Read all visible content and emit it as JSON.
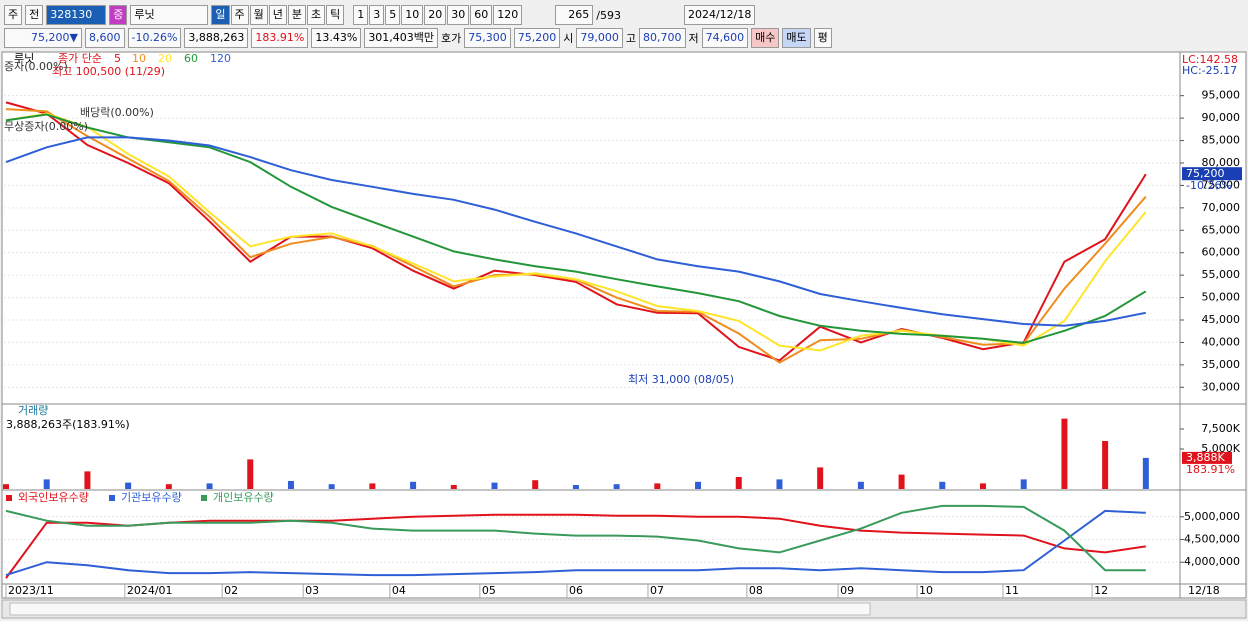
{
  "toolbar": {
    "period": "주",
    "prev": "전",
    "code": "328130",
    "badge": "증",
    "name": "루닛",
    "units": [
      "일",
      "주",
      "월",
      "년",
      "분",
      "초",
      "틱"
    ],
    "counts": [
      "1",
      "3",
      "5",
      "10",
      "20",
      "30",
      "60",
      "120"
    ],
    "view": "265",
    "total": "/593",
    "date": "2024/12/18"
  },
  "info": {
    "price": "75,200▼",
    "change": "8,600",
    "rate": "-10.26%",
    "volume": "3,888,263",
    "volume_rate": "183.91%",
    "turnover": "13.43%",
    "amount": "301,403백만",
    "quote_label": "호가",
    "ask": "75,300",
    "bid": "75,200",
    "open_label": "시",
    "open": "79,000",
    "high_label": "고",
    "high": "80,700",
    "low_label": "저",
    "low": "74,600",
    "buy": "매수",
    "sell": "매도",
    "avg": "평"
  },
  "chart_data": [
    {
      "type": "line",
      "title": "루닛",
      "legend_title": "종가 단순",
      "x": [
        0,
        1,
        2,
        3,
        4,
        5,
        6,
        7,
        8,
        9,
        10,
        11,
        12,
        13,
        14,
        15,
        16,
        17,
        18,
        19,
        20,
        21,
        22,
        23,
        24,
        25,
        26,
        27,
        28
      ],
      "xlim": [
        0,
        28.79
      ],
      "ylim": [
        26500,
        103400
      ],
      "yticks": [
        {
          "value": 30000,
          "label": "30,000"
        },
        {
          "value": 35000,
          "label": "35,000"
        },
        {
          "value": 40000,
          "label": "40,000"
        },
        {
          "value": 45000,
          "label": "45,000"
        },
        {
          "value": 50000,
          "label": "50,000"
        },
        {
          "value": 55000,
          "label": "55,000"
        },
        {
          "value": 60000,
          "label": "60,000"
        },
        {
          "value": 65000,
          "label": "65,000"
        },
        {
          "value": 70000,
          "label": "70,000"
        },
        {
          "value": 75000,
          "label": "75,000"
        },
        {
          "value": 80000,
          "label": "80,000"
        },
        {
          "value": 85000,
          "label": "85,000"
        },
        {
          "value": 90000,
          "label": "90,000"
        },
        {
          "value": 95000,
          "label": "95,000"
        }
      ],
      "grid": true,
      "series": [
        {
          "name": "5",
          "color": "#e0121b",
          "values": [
            93500,
            91000,
            84000,
            80000,
            75500,
            67000,
            58000,
            63600,
            63600,
            61000,
            56000,
            52000,
            56000,
            55000,
            53500,
            48500,
            46600,
            46500,
            39000,
            36000,
            43500,
            40000,
            43000,
            41000,
            38500,
            40000,
            58000,
            63000,
            77500
          ]
        },
        {
          "name": "10",
          "color": "#f08c1e",
          "values": [
            92000,
            91500,
            86000,
            81000,
            76000,
            68000,
            59000,
            62000,
            63500,
            61500,
            57000,
            52500,
            55000,
            55200,
            54000,
            50000,
            47000,
            46800,
            42000,
            35500,
            40500,
            40800,
            42800,
            41200,
            39500,
            39800,
            52000,
            62000,
            72500
          ]
        },
        {
          "name": "20",
          "color": "#ffe52a",
          "values": [
            89500,
            91000,
            88000,
            82000,
            77000,
            69000,
            61400,
            63600,
            64300,
            61400,
            57600,
            53600,
            54700,
            55400,
            54100,
            51400,
            48100,
            47000,
            44800,
            39300,
            38200,
            41500,
            42600,
            41500,
            40800,
            39300,
            44800,
            58100,
            69100
          ]
        },
        {
          "name": "60",
          "color": "#23963a",
          "values": [
            89500,
            90800,
            87900,
            85700,
            84600,
            83500,
            80200,
            74700,
            70200,
            66900,
            63600,
            60300,
            58500,
            57000,
            55800,
            54100,
            52500,
            51000,
            49200,
            45900,
            43700,
            42600,
            41900,
            41500,
            40800,
            39900,
            42600,
            45900,
            51400
          ]
        },
        {
          "name": "120",
          "color": "#2f5fd6",
          "values": [
            80200,
            83500,
            85700,
            85700,
            85000,
            83900,
            81300,
            78400,
            76200,
            74700,
            73100,
            71800,
            69600,
            66900,
            64300,
            61400,
            58500,
            57000,
            55800,
            53600,
            50800,
            49200,
            47700,
            46300,
            45200,
            44100,
            43700,
            44800,
            46600
          ]
        }
      ],
      "annotations": [
        "최고 100,500 (11/29)",
        "최저 31,000 (08/05)",
        "배당락(0.00%)",
        "무상증자(0.00%)",
        "증자(0.00%)"
      ],
      "lc": "LC:142.58",
      "hc": "HC:-25.17",
      "last_label": "75,200",
      "last_rate": "-10.26%"
    },
    {
      "type": "bar",
      "title": "거래량",
      "subtitle": "3,888,263주(183.91%)",
      "x": [
        0,
        1,
        2,
        3,
        4,
        5,
        6,
        7,
        8,
        9,
        10,
        11,
        12,
        13,
        14,
        15,
        16,
        17,
        18,
        19,
        20,
        21,
        22,
        23,
        24,
        25,
        26,
        27,
        28
      ],
      "xlim": [
        0,
        28.79
      ],
      "ylim": [
        0,
        10250
      ],
      "yticks": [
        {
          "value": 5000,
          "label": "5,000K"
        },
        {
          "value": 7500,
          "label": "7,500K"
        }
      ],
      "values": [
        600,
        1200,
        2200,
        800,
        600,
        700,
        3700,
        1000,
        600,
        700,
        900,
        500,
        800,
        1100,
        500,
        600,
        700,
        900,
        1500,
        1200,
        2700,
        900,
        1800,
        900,
        700,
        1200,
        8800,
        6000,
        3888
      ],
      "colors": [
        "#e0121b",
        "#2f5fd6",
        "#e0121b",
        "#2f5fd6",
        "#e0121b",
        "#2f5fd6",
        "#e0121b",
        "#2f5fd6",
        "#2f5fd6",
        "#e0121b",
        "#2f5fd6",
        "#e0121b",
        "#2f5fd6",
        "#e0121b",
        "#2f5fd6",
        "#2f5fd6",
        "#e0121b",
        "#2f5fd6",
        "#e0121b",
        "#2f5fd6",
        "#e0121b",
        "#2f5fd6",
        "#e0121b",
        "#2f5fd6",
        "#e0121b",
        "#2f5fd6",
        "#e0121b",
        "#e0121b",
        "#2f5fd6"
      ],
      "last_label": "3,888K",
      "last_rate": "183.91%"
    },
    {
      "type": "line",
      "x": [
        0,
        1,
        2,
        3,
        4,
        5,
        6,
        7,
        8,
        9,
        10,
        11,
        12,
        13,
        14,
        15,
        16,
        17,
        18,
        19,
        20,
        21,
        22,
        23,
        24,
        25,
        26,
        27,
        28
      ],
      "xlim": [
        0,
        28.79
      ],
      "ylim": [
        3543500,
        5434800
      ],
      "yticks": [
        {
          "value": 4000000,
          "label": "4,000,000"
        },
        {
          "value": 4500000,
          "label": "4,500,000"
        },
        {
          "value": 5000000,
          "label": "5,000,000"
        }
      ],
      "grid": true,
      "xticks": [
        {
          "value": 0,
          "label": "2023/11"
        },
        {
          "value": 2.92,
          "label": "2024/01"
        },
        {
          "value": 5.31,
          "label": "02"
        },
        {
          "value": 7.3,
          "label": "03"
        },
        {
          "value": 9.43,
          "label": "04"
        },
        {
          "value": 11.64,
          "label": "05"
        },
        {
          "value": 13.78,
          "label": "06"
        },
        {
          "value": 15.77,
          "label": "07"
        },
        {
          "value": 18.2,
          "label": "08"
        },
        {
          "value": 20.44,
          "label": "09"
        },
        {
          "value": 22.38,
          "label": "10"
        },
        {
          "value": 24.49,
          "label": "11"
        },
        {
          "value": 26.68,
          "label": "12"
        }
      ],
      "x_end_label": "12/18",
      "series": [
        {
          "name": "외국인보유수량",
          "color": "#e0121b",
          "values": [
            3652000,
            4870000,
            4870000,
            4804000,
            4870000,
            4913000,
            4913000,
            4913000,
            4913000,
            4957000,
            5000000,
            5022000,
            5043000,
            5043000,
            5043000,
            5022000,
            5022000,
            5000000,
            5000000,
            4957000,
            4804000,
            4696000,
            4652000,
            4630000,
            4609000,
            4587000,
            4304000,
            4217000,
            4348000
          ]
        },
        {
          "name": "기관보유수량",
          "color": "#2f5fd6",
          "values": [
            3717000,
            4000000,
            3935000,
            3826000,
            3761000,
            3761000,
            3783000,
            3761000,
            3739000,
            3717000,
            3717000,
            3739000,
            3761000,
            3783000,
            3826000,
            3826000,
            3826000,
            3826000,
            3870000,
            3870000,
            3826000,
            3870000,
            3826000,
            3783000,
            3783000,
            3826000,
            4478000,
            5130000,
            5087000
          ]
        },
        {
          "name": "개인보유수량",
          "color": "#3a9a5c",
          "values": [
            5130000,
            4913000,
            4804000,
            4804000,
            4870000,
            4870000,
            4870000,
            4913000,
            4870000,
            4739000,
            4696000,
            4696000,
            4696000,
            4630000,
            4587000,
            4587000,
            4565000,
            4478000,
            4304000,
            4217000,
            4478000,
            4739000,
            5087000,
            5239000,
            5239000,
            5217000,
            4696000,
            3826000,
            3826000
          ]
        }
      ]
    }
  ]
}
